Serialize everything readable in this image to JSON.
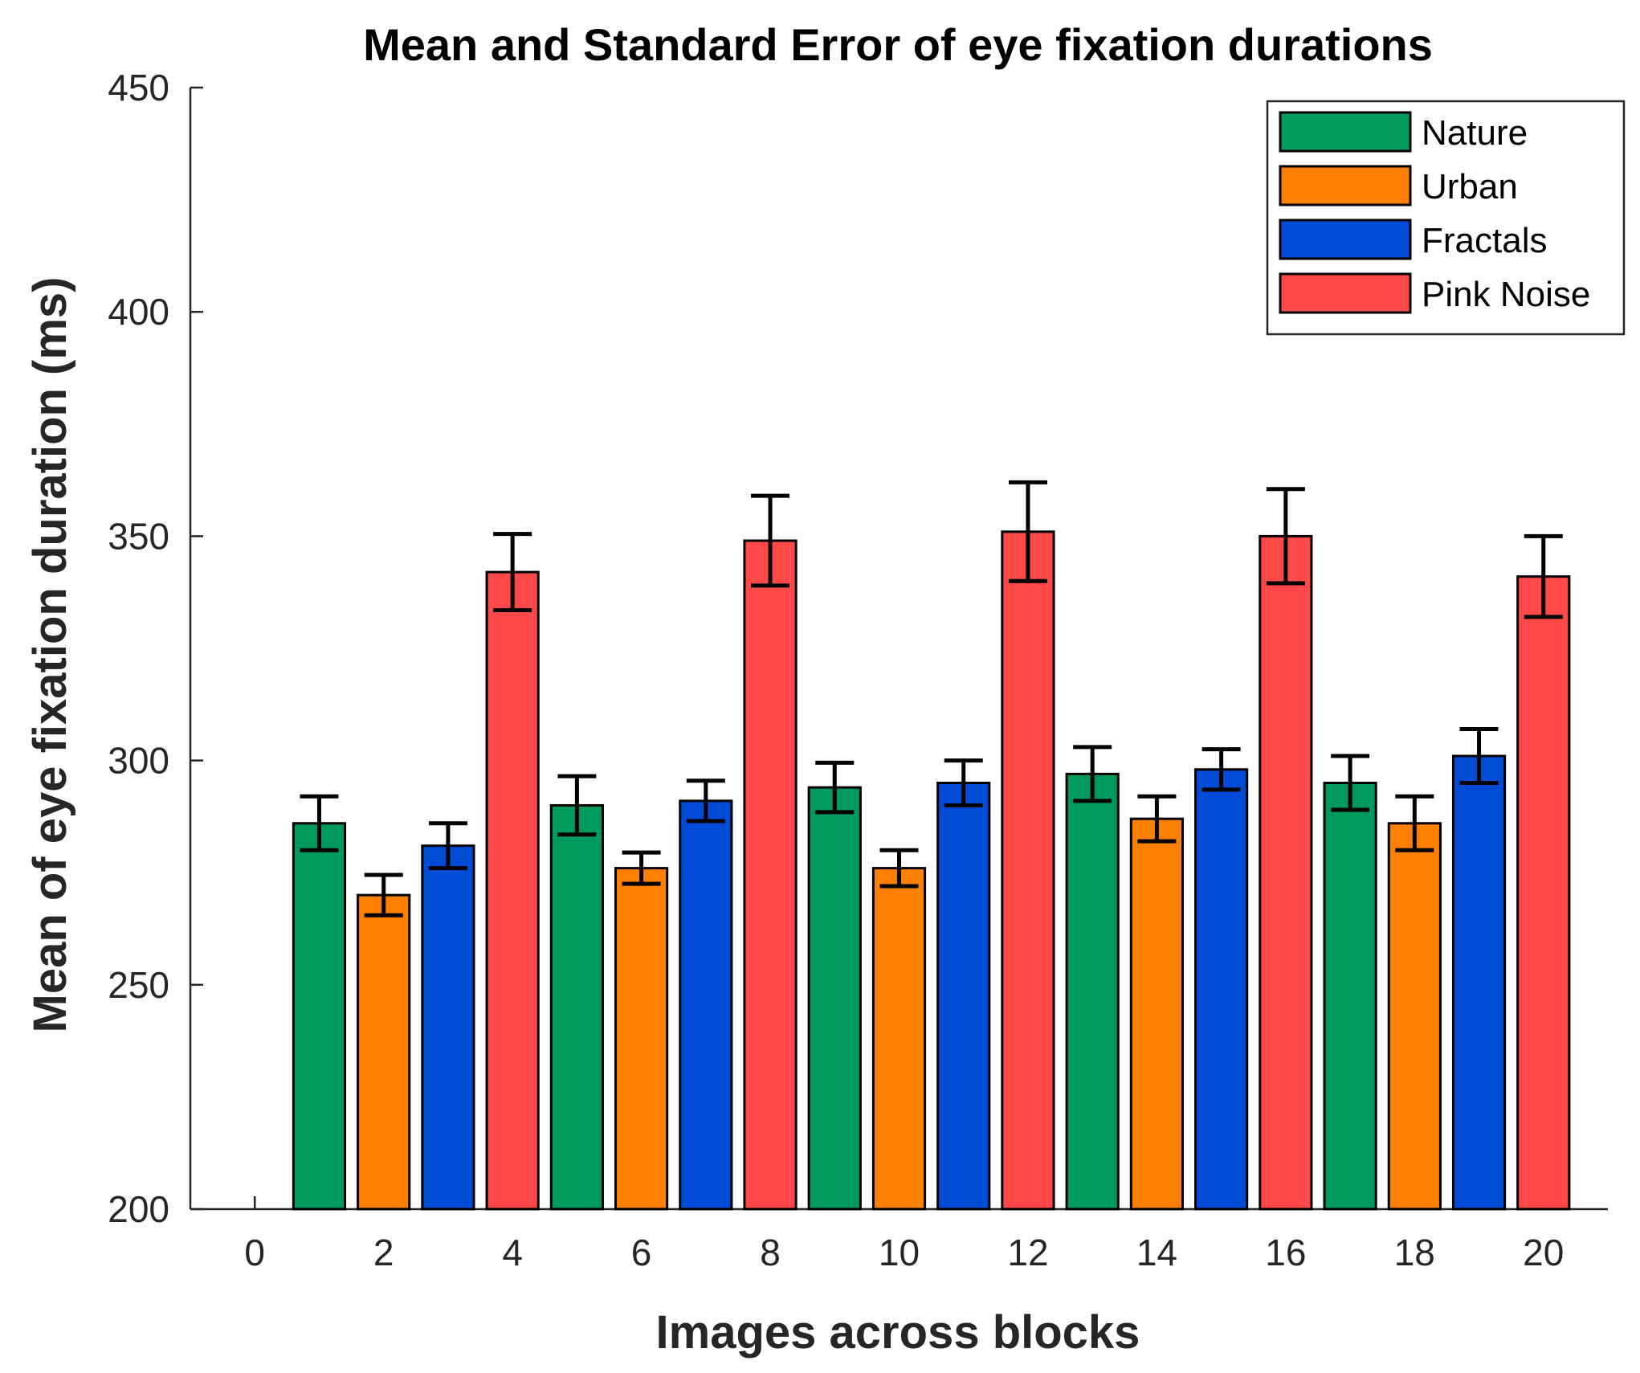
{
  "chart_data": {
    "type": "bar",
    "title": "Mean and Standard Error of eye fixation durations",
    "xlabel": "Images across blocks",
    "ylabel": "Mean of eye fixation duration (ms)",
    "xlim": [
      -1,
      21
    ],
    "ylim": [
      200,
      450
    ],
    "xticks": [
      "0",
      "2",
      "4",
      "6",
      "8",
      "10",
      "12",
      "14",
      "16",
      "18",
      "20"
    ],
    "yticks": [
      "200",
      "250",
      "300",
      "350",
      "400",
      "450"
    ],
    "grid": false,
    "legend_position": "top-right",
    "series": [
      {
        "name": "Nature",
        "color": "#009a5e"
      },
      {
        "name": "Urban",
        "color": "#ff8000"
      },
      {
        "name": "Fractals",
        "color": "#004cd6"
      },
      {
        "name": "Pink Noise",
        "color": "#ff4848"
      }
    ],
    "bars": [
      {
        "x": 1,
        "series": "Nature",
        "value": 286,
        "se": 6
      },
      {
        "x": 2,
        "series": "Urban",
        "value": 270,
        "se": 4.5
      },
      {
        "x": 3,
        "series": "Fractals",
        "value": 281,
        "se": 5
      },
      {
        "x": 4,
        "series": "Pink Noise",
        "value": 342,
        "se": 8.5
      },
      {
        "x": 5,
        "series": "Nature",
        "value": 290,
        "se": 6.5
      },
      {
        "x": 6,
        "series": "Urban",
        "value": 276,
        "se": 3.5
      },
      {
        "x": 7,
        "series": "Fractals",
        "value": 291,
        "se": 4.5
      },
      {
        "x": 8,
        "series": "Pink Noise",
        "value": 349,
        "se": 10
      },
      {
        "x": 9,
        "series": "Nature",
        "value": 294,
        "se": 5.5
      },
      {
        "x": 10,
        "series": "Urban",
        "value": 276,
        "se": 4
      },
      {
        "x": 11,
        "series": "Fractals",
        "value": 295,
        "se": 5
      },
      {
        "x": 12,
        "series": "Pink Noise",
        "value": 351,
        "se": 11
      },
      {
        "x": 13,
        "series": "Nature",
        "value": 297,
        "se": 6
      },
      {
        "x": 14,
        "series": "Urban",
        "value": 287,
        "se": 5
      },
      {
        "x": 15,
        "series": "Fractals",
        "value": 298,
        "se": 4.5
      },
      {
        "x": 16,
        "series": "Pink Noise",
        "value": 350,
        "se": 10.5
      },
      {
        "x": 17,
        "series": "Nature",
        "value": 295,
        "se": 6
      },
      {
        "x": 18,
        "series": "Urban",
        "value": 286,
        "se": 6
      },
      {
        "x": 19,
        "series": "Fractals",
        "value": 301,
        "se": 6
      },
      {
        "x": 20,
        "series": "Pink Noise",
        "value": 341,
        "se": 9
      }
    ]
  }
}
